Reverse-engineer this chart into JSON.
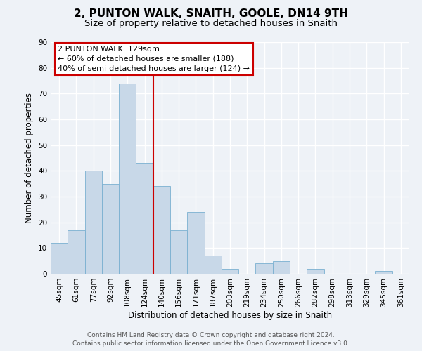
{
  "title": "2, PUNTON WALK, SNAITH, GOOLE, DN14 9TH",
  "subtitle": "Size of property relative to detached houses in Snaith",
  "xlabel": "Distribution of detached houses by size in Snaith",
  "ylabel": "Number of detached properties",
  "categories": [
    "45sqm",
    "61sqm",
    "77sqm",
    "92sqm",
    "108sqm",
    "124sqm",
    "140sqm",
    "156sqm",
    "171sqm",
    "187sqm",
    "203sqm",
    "219sqm",
    "234sqm",
    "250sqm",
    "266sqm",
    "282sqm",
    "298sqm",
    "313sqm",
    "329sqm",
    "345sqm",
    "361sqm"
  ],
  "values": [
    12,
    17,
    40,
    35,
    74,
    43,
    34,
    17,
    24,
    7,
    2,
    0,
    4,
    5,
    0,
    2,
    0,
    0,
    0,
    1,
    0
  ],
  "bar_color": "#c8d8e8",
  "bar_edge_color": "#7ab0d0",
  "highlight_line_color": "#cc0000",
  "ylim": [
    0,
    90
  ],
  "yticks": [
    0,
    10,
    20,
    30,
    40,
    50,
    60,
    70,
    80,
    90
  ],
  "annotation_title": "2 PUNTON WALK: 129sqm",
  "annotation_line1": "← 60% of detached houses are smaller (188)",
  "annotation_line2": "40% of semi-detached houses are larger (124) →",
  "annotation_box_color": "#ffffff",
  "annotation_box_edge": "#cc0000",
  "footer_line1": "Contains HM Land Registry data © Crown copyright and database right 2024.",
  "footer_line2": "Contains public sector information licensed under the Open Government Licence v3.0.",
  "background_color": "#eef2f7",
  "grid_color": "#ffffff",
  "title_fontsize": 11,
  "subtitle_fontsize": 9.5,
  "axis_label_fontsize": 8.5,
  "tick_fontsize": 7.5,
  "footer_fontsize": 6.5,
  "annotation_fontsize": 8.0
}
